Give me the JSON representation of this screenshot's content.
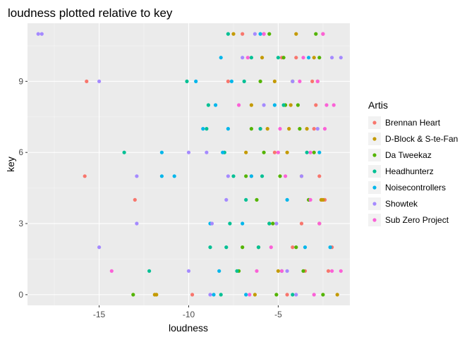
{
  "chart_data": {
    "type": "scatter",
    "title": "loudness plotted relative to key",
    "xlabel": "loudness",
    "ylabel": "key",
    "xlim": [
      -19.0,
      -1.0
    ],
    "ylim": [
      -0.45,
      11.45
    ],
    "x_ticks": [
      -15,
      -10,
      -5
    ],
    "x_minor": [
      -17.5,
      -12.5,
      -7.5,
      -2.5
    ],
    "y_ticks": [
      0,
      3,
      6,
      9
    ],
    "y_minor": [
      1.5,
      4.5,
      7.5,
      10.5
    ],
    "grid": true,
    "legend": {
      "title": "Artis",
      "position": "right"
    },
    "series": [
      {
        "name": "Brennan Heart",
        "color": "#F8766D",
        "points": [
          [
            -15.7,
            9
          ],
          [
            -15.8,
            5
          ],
          [
            -13.0,
            4
          ],
          [
            -9.8,
            0
          ],
          [
            -4.0,
            10
          ],
          [
            -3.1,
            9
          ],
          [
            -2.5,
            11
          ],
          [
            -2.9,
            8
          ],
          [
            -2.7,
            5
          ],
          [
            -2.4,
            4
          ],
          [
            -2.0,
            2
          ],
          [
            -3.7,
            3
          ],
          [
            -5.2,
            6
          ],
          [
            -6.0,
            7
          ],
          [
            -7.8,
            9
          ],
          [
            -4.5,
            0
          ],
          [
            -3.5,
            1
          ],
          [
            -5.8,
            11
          ],
          [
            -6.5,
            5
          ],
          [
            -4.2,
            2
          ],
          [
            -2.2,
            1
          ],
          [
            -7.0,
            11
          ],
          [
            -3.0,
            7
          ],
          [
            -4.8,
            10
          ]
        ]
      },
      {
        "name": "D-Block & S-te-Fan",
        "color": "#C49A00",
        "points": [
          [
            -11.9,
            0
          ],
          [
            -11.8,
            0
          ],
          [
            -1.7,
            0
          ],
          [
            -2.6,
            4
          ],
          [
            -2.5,
            4
          ],
          [
            -4.4,
            7
          ],
          [
            -5.6,
            7
          ],
          [
            -3.4,
            7
          ],
          [
            -6.1,
            2
          ],
          [
            -6.3,
            0
          ],
          [
            -5.5,
            3
          ],
          [
            -4.5,
            6
          ],
          [
            -2.8,
            9
          ],
          [
            -5.2,
            9
          ],
          [
            -6.8,
            6
          ],
          [
            -3.0,
            10
          ],
          [
            -4.0,
            11
          ],
          [
            -6.5,
            8
          ],
          [
            -3.7,
            5
          ],
          [
            -5.0,
            1
          ],
          [
            -7.5,
            11
          ],
          [
            -2.7,
            3
          ],
          [
            -4.3,
            8
          ],
          [
            -5.9,
            10
          ]
        ]
      },
      {
        "name": "Da Tweekaz",
        "color": "#53B400",
        "points": [
          [
            -13.1,
            0
          ],
          [
            -6.2,
            4
          ],
          [
            -4.0,
            2
          ],
          [
            -3.6,
            1
          ],
          [
            -3.0,
            6
          ],
          [
            -4.6,
            8
          ],
          [
            -2.7,
            10
          ],
          [
            -5.5,
            11
          ],
          [
            -6.0,
            9
          ],
          [
            -4.9,
            5
          ],
          [
            -3.8,
            7
          ],
          [
            -5.3,
            3
          ],
          [
            -7.2,
            1
          ],
          [
            -2.5,
            0
          ],
          [
            -4.7,
            10
          ],
          [
            -6.5,
            7
          ],
          [
            -3.3,
            4
          ],
          [
            -5.8,
            6
          ],
          [
            -4.2,
            9
          ],
          [
            -2.9,
            11
          ],
          [
            -7.0,
            2
          ],
          [
            -3.9,
            8
          ],
          [
            -5.1,
            0
          ],
          [
            -6.8,
            5
          ]
        ]
      },
      {
        "name": "Headhunterz",
        "color": "#00C094",
        "points": [
          [
            -13.6,
            6
          ],
          [
            -12.2,
            1
          ],
          [
            -10.1,
            9
          ],
          [
            -8.9,
            8
          ],
          [
            -8.8,
            2
          ],
          [
            -7.9,
            2
          ],
          [
            -7.7,
            3
          ],
          [
            -6.8,
            4
          ],
          [
            -8.0,
            6
          ],
          [
            -9.0,
            7
          ],
          [
            -7.5,
            5
          ],
          [
            -8.2,
            0
          ],
          [
            -7.3,
            1
          ],
          [
            -6.9,
            9
          ],
          [
            -6.0,
            7
          ],
          [
            -5.5,
            3
          ],
          [
            -4.7,
            8
          ],
          [
            -6.5,
            10
          ],
          [
            -7.8,
            11
          ],
          [
            -5.9,
            5
          ],
          [
            -3.4,
            6
          ],
          [
            -4.2,
            0
          ],
          [
            -6.1,
            2
          ],
          [
            -5.0,
            10
          ]
        ]
      },
      {
        "name": "Noisecontrollers",
        "color": "#00B6EB",
        "points": [
          [
            -11.5,
            6
          ],
          [
            -11.5,
            5
          ],
          [
            -10.8,
            5
          ],
          [
            -9.6,
            9
          ],
          [
            -9.2,
            7
          ],
          [
            -8.8,
            3
          ],
          [
            -8.2,
            10
          ],
          [
            -8.1,
            6
          ],
          [
            -8.6,
            0
          ],
          [
            -8.3,
            1
          ],
          [
            -8.5,
            8
          ],
          [
            -7.8,
            7
          ],
          [
            -7.0,
            3
          ],
          [
            -6.5,
            5
          ],
          [
            -2.7,
            6
          ],
          [
            -3.5,
            2
          ],
          [
            -2.1,
            2
          ],
          [
            -4.5,
            4
          ],
          [
            -6.0,
            11
          ],
          [
            -5.2,
            8
          ],
          [
            -3.3,
            10
          ],
          [
            -7.6,
            9
          ],
          [
            -4.8,
            1
          ],
          [
            -6.8,
            0
          ]
        ]
      },
      {
        "name": "Showtek",
        "color": "#A58AFF",
        "points": [
          [
            -18.4,
            11
          ],
          [
            -18.2,
            11
          ],
          [
            -15.0,
            9
          ],
          [
            -15.0,
            2
          ],
          [
            -12.9,
            5
          ],
          [
            -12.9,
            3
          ],
          [
            -10.0,
            6
          ],
          [
            -9.0,
            6
          ],
          [
            -8.7,
            3
          ],
          [
            -7.9,
            4
          ],
          [
            -7.8,
            5
          ],
          [
            -5.1,
            3
          ],
          [
            -4.5,
            1
          ],
          [
            -4.0,
            0
          ],
          [
            -2.0,
            10
          ],
          [
            -1.5,
            10
          ],
          [
            -2.8,
            7
          ],
          [
            -5.8,
            8
          ],
          [
            -7.0,
            10
          ],
          [
            -4.2,
            9
          ],
          [
            -6.3,
            11
          ],
          [
            -10.0,
            1
          ],
          [
            -3.7,
            5
          ],
          [
            -8.8,
            0
          ]
        ]
      },
      {
        "name": "Sub Zero Project",
        "color": "#FB61D7",
        "points": [
          [
            -14.3,
            1
          ],
          [
            -1.5,
            1
          ],
          [
            -2.3,
            8
          ],
          [
            -1.9,
            8
          ],
          [
            -2.4,
            7
          ],
          [
            -2.0,
            1
          ],
          [
            -3.2,
            6
          ],
          [
            -3.0,
            0
          ],
          [
            -4.8,
            1
          ],
          [
            -5.8,
            11
          ],
          [
            -6.7,
            10
          ],
          [
            -3.8,
            9
          ],
          [
            -2.7,
            3
          ],
          [
            -4.9,
            7
          ],
          [
            -5.4,
            2
          ],
          [
            -3.2,
            4
          ],
          [
            -7.2,
            8
          ],
          [
            -4.6,
            5
          ],
          [
            -2.5,
            11
          ],
          [
            -6.2,
            1
          ],
          [
            -3.6,
            10
          ],
          [
            -5.0,
            6
          ],
          [
            -2.8,
            9
          ],
          [
            -6.6,
            0
          ]
        ]
      }
    ]
  }
}
